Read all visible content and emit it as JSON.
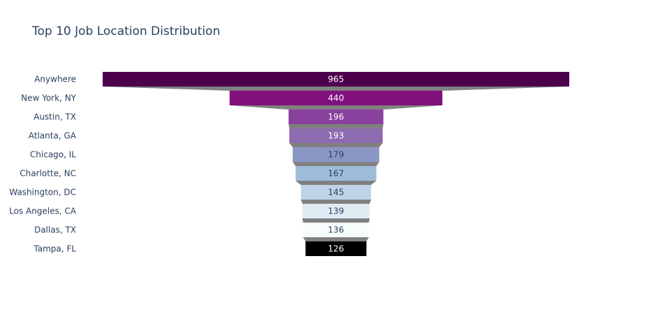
{
  "chart_data": {
    "type": "funnel",
    "title": "Top 10 Job Location Distribution",
    "categories": [
      "Anywhere",
      "New York, NY",
      "Austin, TX",
      "Atlanta, GA",
      "Chicago, IL",
      "Charlotte, NC",
      "Washington, DC",
      "Los Angeles, CA",
      "Dallas, TX",
      "Tampa, FL"
    ],
    "values": [
      965,
      440,
      196,
      193,
      179,
      167,
      145,
      139,
      136,
      126
    ],
    "colors": [
      "#4d004b",
      "#810f7c",
      "#88419d",
      "#8c6bb1",
      "#8c96c6",
      "#9ebcda",
      "#bfd3e6",
      "#e0ecf4",
      "#f7fcfd",
      "#000000"
    ],
    "label_colors": [
      "#ffffff",
      "#ffffff",
      "#ffffff",
      "#ffffff",
      "#2a3f5f",
      "#2a3f5f",
      "#2a3f5f",
      "#2a3f5f",
      "#2a3f5f",
      "#ffffff"
    ],
    "connector_color": "#808080"
  }
}
